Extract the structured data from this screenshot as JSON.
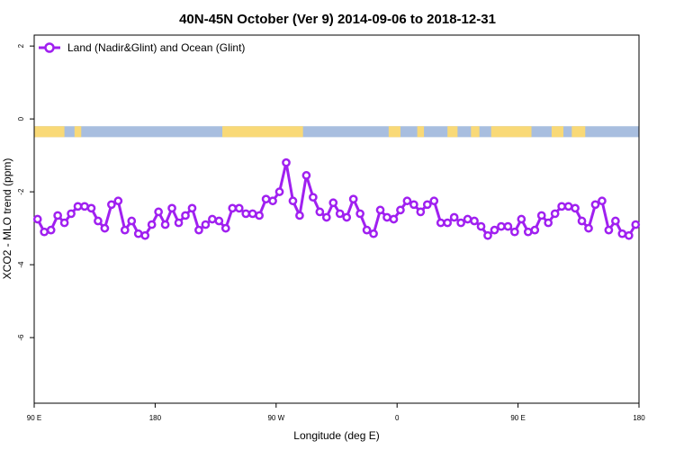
{
  "chart_data": {
    "type": "line",
    "title": "40N-45N October (Ver 9)   2014-09-06 to 2018-12-31",
    "xlabel": "Longitude (deg E)",
    "ylabel": "XCO2 - MLO trend (ppm)",
    "xlim": [
      90,
      450
    ],
    "ylim": [
      -7.8,
      2.3
    ],
    "x_ticks": [
      {
        "value": 90,
        "label": "90 E"
      },
      {
        "value": 162,
        "label": "180"
      },
      {
        "value": 234,
        "label": "90 W"
      },
      {
        "value": 306,
        "label": "0"
      },
      {
        "value": 378,
        "label": "90 E"
      },
      {
        "value": 450,
        "label": "180"
      }
    ],
    "y_ticks": [
      {
        "value": 2,
        "label": "2"
      },
      {
        "value": 0,
        "label": "0"
      },
      {
        "value": -2,
        "label": "-2"
      },
      {
        "value": -4,
        "label": "-4"
      },
      {
        "value": -6,
        "label": "-6"
      }
    ],
    "grid": false,
    "legend": {
      "position": "top-left"
    },
    "series": [
      {
        "name": "Land (Nadir&Glint) and Ocean (Glint)",
        "color": "#a020f0",
        "x": [
          92,
          96,
          100,
          104,
          108,
          112,
          116,
          120,
          124,
          128,
          132,
          136,
          140,
          144,
          148,
          152,
          156,
          160,
          164,
          168,
          172,
          176,
          180,
          184,
          188,
          192,
          196,
          200,
          204,
          208,
          212,
          216,
          220,
          224,
          228,
          232,
          236,
          240,
          244,
          248,
          252,
          256,
          260,
          264,
          268,
          272,
          276,
          280,
          284,
          288,
          292,
          296,
          300,
          304,
          308,
          312,
          316,
          320,
          324,
          328,
          332,
          336,
          340,
          344,
          348,
          352,
          356,
          360,
          364,
          368,
          372,
          376,
          380,
          384,
          388,
          392,
          396,
          400,
          404,
          408,
          412,
          416,
          420,
          424,
          428,
          432,
          436,
          440,
          444,
          448
        ],
        "values": [
          -2.75,
          -3.1,
          -3.05,
          -2.65,
          -2.85,
          -2.6,
          -2.4,
          -2.4,
          -2.45,
          -2.8,
          -3.0,
          -2.35,
          -2.25,
          -3.05,
          -2.8,
          -3.15,
          -3.2,
          -2.9,
          -2.55,
          -2.9,
          -2.45,
          -2.85,
          -2.65,
          -2.45,
          -3.05,
          -2.9,
          -2.75,
          -2.8,
          -3.0,
          -2.45,
          -2.45,
          -2.6,
          -2.6,
          -2.65,
          -2.2,
          -2.25,
          -2.0,
          -1.2,
          -2.25,
          -2.65,
          -1.55,
          -2.15,
          -2.55,
          -2.7,
          -2.3,
          -2.6,
          -2.7,
          -2.2,
          -2.6,
          -3.05,
          -3.15,
          -2.5,
          -2.7,
          -2.75,
          -2.5,
          -2.25,
          -2.35,
          -2.55,
          -2.35,
          -2.25,
          -2.85,
          -2.85,
          -2.7,
          -2.85,
          -2.75,
          -2.8,
          -2.95,
          -3.2,
          -3.05,
          -2.95,
          -2.95,
          -3.1,
          -2.75,
          -3.1,
          -3.05,
          -2.65,
          -2.85,
          -2.6,
          -2.4,
          -2.4,
          -2.45,
          -2.8,
          -3.0,
          -2.35,
          -2.25,
          -3.05,
          -2.8,
          -3.15,
          -3.2,
          -2.9
        ]
      }
    ],
    "surface_band": {
      "y_range": [
        -0.2,
        -0.5
      ],
      "land_color": "#f9d977",
      "ocean_color": "#a8bedf",
      "land_segments": [
        [
          90,
          108
        ],
        [
          114,
          118
        ],
        [
          202,
          250
        ],
        [
          301,
          308
        ],
        [
          318,
          322
        ],
        [
          336,
          342
        ],
        [
          350,
          355
        ],
        [
          362,
          386
        ],
        [
          398,
          405
        ],
        [
          410,
          418
        ]
      ]
    }
  }
}
